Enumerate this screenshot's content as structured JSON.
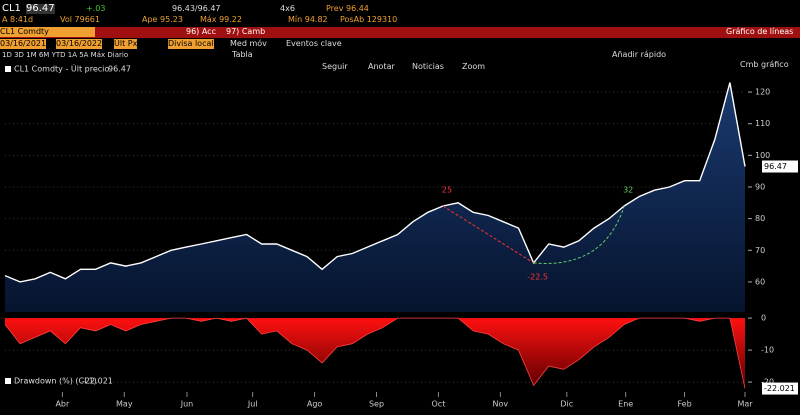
{
  "header": {
    "ticker": "CL1",
    "last": "96.47",
    "change": "+.03",
    "bidask": "96.43/96.47",
    "size": "4x6",
    "prev": "Prev 96.44",
    "time": "A 8:41d",
    "volume": "Vol 79661",
    "open": "Ape 95.23",
    "high": "Máx 99.22",
    "low": "Mín 94.82",
    "oi": "PosAb 129310"
  },
  "toolbar": {
    "security": "CL1 Comdty",
    "actions": "96) Acc",
    "change": "97) Camb",
    "view": "Gráfico de líneas",
    "start": "03/16/2021",
    "end": "03/16/2022",
    "field": "Últ Px",
    "currency": "Divisa local",
    "ma": "Med móv",
    "events": "Eventos clave",
    "periods": "1D  3D  1M  6M  YTD  1A  5A  Máx  Diario",
    "table": "Tabla",
    "quickadd": "Añadir rápido",
    "chartchange": "Cmb gráfico",
    "tools": [
      "Seguir",
      "Anotar",
      "Noticias",
      "Zoom"
    ]
  },
  "chart_data": [
    {
      "type": "area",
      "legend": "CL1 Comdty - Últ precio",
      "last_label": "96.47",
      "color": "#ffffff",
      "fill": "#0b2550",
      "values": [
        62,
        60,
        61,
        63,
        61,
        64,
        64,
        66,
        65,
        66,
        68,
        70,
        71,
        72,
        73,
        74,
        75,
        72,
        72,
        70,
        68,
        64,
        68,
        69,
        71,
        73,
        75,
        79,
        82,
        84,
        85,
        82,
        81,
        79,
        77,
        66,
        72,
        71,
        73,
        77,
        80,
        84,
        87,
        89,
        90,
        92,
        92,
        105,
        123,
        96.47
      ],
      "ylim": [
        50.5,
        127.6
      ],
      "yticks": [
        60,
        70,
        80,
        90,
        100,
        110,
        120
      ],
      "xticks": [
        {
          "value": 3.8,
          "label": "Abr"
        },
        {
          "value": 7.9,
          "label": "May"
        },
        {
          "value": 12.05,
          "label": "Jun"
        },
        {
          "value": 16.4,
          "label": "Jul"
        },
        {
          "value": 20.5,
          "label": "Ago"
        },
        {
          "value": 24.6,
          "label": "Sep"
        },
        {
          "value": 28.7,
          "label": "Oct"
        },
        {
          "value": 32.8,
          "label": "Nov"
        },
        {
          "value": 37.2,
          "label": "Dic"
        },
        {
          "value": 41.1,
          "label": "Ene"
        },
        {
          "value": 45,
          "label": "Feb"
        },
        {
          "value": 49,
          "label": "Mar"
        }
      ],
      "annotations": [
        "25",
        "-22.5",
        "32"
      ]
    },
    {
      "type": "area",
      "legend": "Drawdown (%) (CL1)",
      "last_label": "-22.021",
      "color": "#ff1010",
      "values": [
        -2,
        -8,
        -6,
        -4,
        -8,
        -3,
        -4,
        -2,
        -4,
        -2,
        -1,
        0,
        0,
        -1,
        0,
        -1,
        0,
        -5,
        -4,
        -8,
        -10,
        -14,
        -9,
        -8,
        -5,
        -3,
        0,
        0,
        0,
        0,
        0,
        -4,
        -5,
        -8,
        -10,
        -21,
        -15,
        -16,
        -13,
        -9,
        -6,
        -2,
        0,
        0,
        0,
        0,
        -1,
        0,
        0,
        -22.021
      ],
      "ylim": [
        -23.1,
        1.9
      ],
      "yticks": [
        0,
        -10,
        -20
      ]
    }
  ]
}
